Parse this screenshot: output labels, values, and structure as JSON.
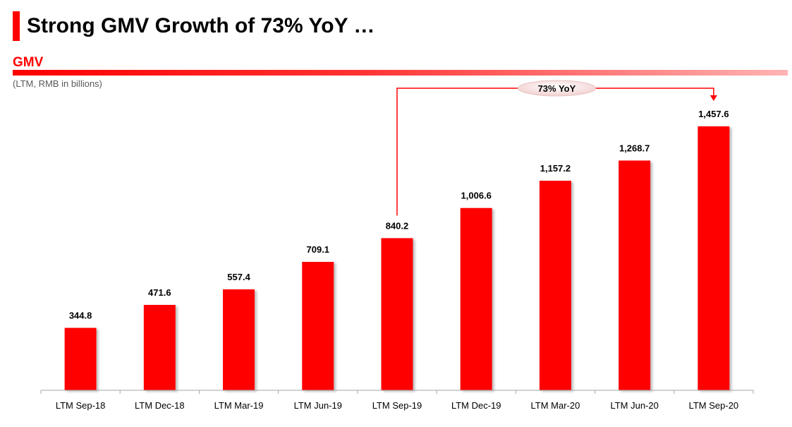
{
  "header": {
    "title": "Strong GMV Growth of 73% YoY …"
  },
  "section": {
    "title": "GMV",
    "subtitle": "(LTM, RMB in billions)"
  },
  "colors": {
    "bar": "#ff0000",
    "accent": "#ff0000"
  },
  "chart_data": {
    "type": "bar",
    "title": "",
    "xlabel": "",
    "ylabel": "",
    "categories": [
      "LTM Sep-18",
      "LTM Dec-18",
      "LTM Mar-19",
      "LTM Jun-19",
      "LTM Sep-19",
      "LTM Dec-19",
      "LTM Mar-20",
      "LTM Jun-20",
      "LTM Sep-20"
    ],
    "values": [
      344.8,
      471.6,
      557.4,
      709.1,
      840.2,
      1006.6,
      1157.2,
      1268.7,
      1457.6
    ],
    "data_labels": [
      "344.8",
      "471.6",
      "557.4",
      "709.1",
      "840.2",
      "1,006.6",
      "1,157.2",
      "1,268.7",
      "1,457.6"
    ],
    "ylim": [
      0,
      1457.6
    ],
    "grid": false,
    "legend": "none",
    "annotation": {
      "text": "73% YoY",
      "from_category": "LTM Sep-19",
      "to_category": "LTM Sep-20"
    }
  }
}
